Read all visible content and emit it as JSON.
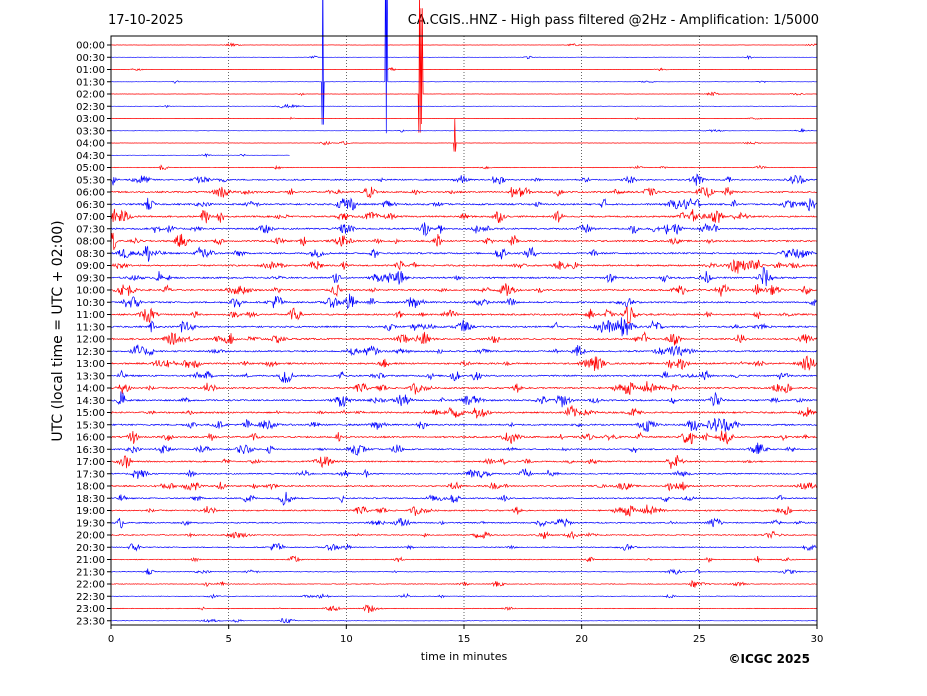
{
  "header": {
    "date": "17-10-2025",
    "station_title": "CA.CGIS..HNZ - High pass filtered @2Hz - Amplification: 1/5000"
  },
  "footer": {
    "copyright": "©ICGC 2025"
  },
  "chart_data": {
    "type": "line",
    "title": "CA.CGIS..HNZ - High pass filtered @2Hz - Amplification: 1/5000",
    "xlabel": "time in minutes",
    "ylabel": "UTC (local time = UTC + 02:00)",
    "xlim": [
      0,
      30
    ],
    "xticks": [
      0,
      5,
      10,
      15,
      20,
      25,
      30
    ],
    "grid": "vertical dotted lines at 5, 10, 15, 20, 25",
    "series_colors": [
      "#ff0000",
      "#0000ff"
    ],
    "color_rule": "traces alternate red / blue by row",
    "rows": [
      "00:00",
      "00:30",
      "01:00",
      "01:30",
      "02:00",
      "02:30",
      "03:00",
      "03:30",
      "04:00",
      "04:30",
      "05:00",
      "05:30",
      "06:00",
      "06:30",
      "07:00",
      "07:30",
      "08:00",
      "08:30",
      "09:00",
      "09:30",
      "10:00",
      "10:30",
      "11:00",
      "11:30",
      "12:00",
      "12:30",
      "13:00",
      "13:30",
      "14:00",
      "14:30",
      "15:00",
      "15:30",
      "16:00",
      "16:30",
      "17:00",
      "17:30",
      "18:00",
      "18:30",
      "19:00",
      "19:30",
      "20:00",
      "20:30",
      "21:00",
      "21:30",
      "22:00",
      "22:30",
      "23:00",
      "23:30"
    ],
    "row_noise_level": [
      0.2,
      0.2,
      0.2,
      0.2,
      0.2,
      0.2,
      0.2,
      0.2,
      0.2,
      0.2,
      0.4,
      1.0,
      1.2,
      1.2,
      1.2,
      1.2,
      1.2,
      1.2,
      1.2,
      1.2,
      1.2,
      1.2,
      1.2,
      1.2,
      1.2,
      1.2,
      1.2,
      1.2,
      1.2,
      1.2,
      1.2,
      1.2,
      1.2,
      1.0,
      1.0,
      1.0,
      1.0,
      1.0,
      1.0,
      0.9,
      0.8,
      0.7,
      0.6,
      0.5,
      0.5,
      0.4,
      0.4,
      0.3
    ],
    "trace_end_minutes": {
      "04:30": 7.6
    },
    "large_events": [
      {
        "row": "01:30",
        "minute": 9.0,
        "amplitude_rows": 10
      },
      {
        "row": "01:30",
        "minute": 11.7,
        "amplitude_rows": 12
      },
      {
        "row": "02:00",
        "minute": 13.1,
        "amplitude_rows": 9
      },
      {
        "row": "02:00",
        "minute": 13.2,
        "amplitude_rows": 7
      },
      {
        "row": "04:00",
        "minute": 14.6,
        "amplitude_rows": 2
      }
    ]
  }
}
